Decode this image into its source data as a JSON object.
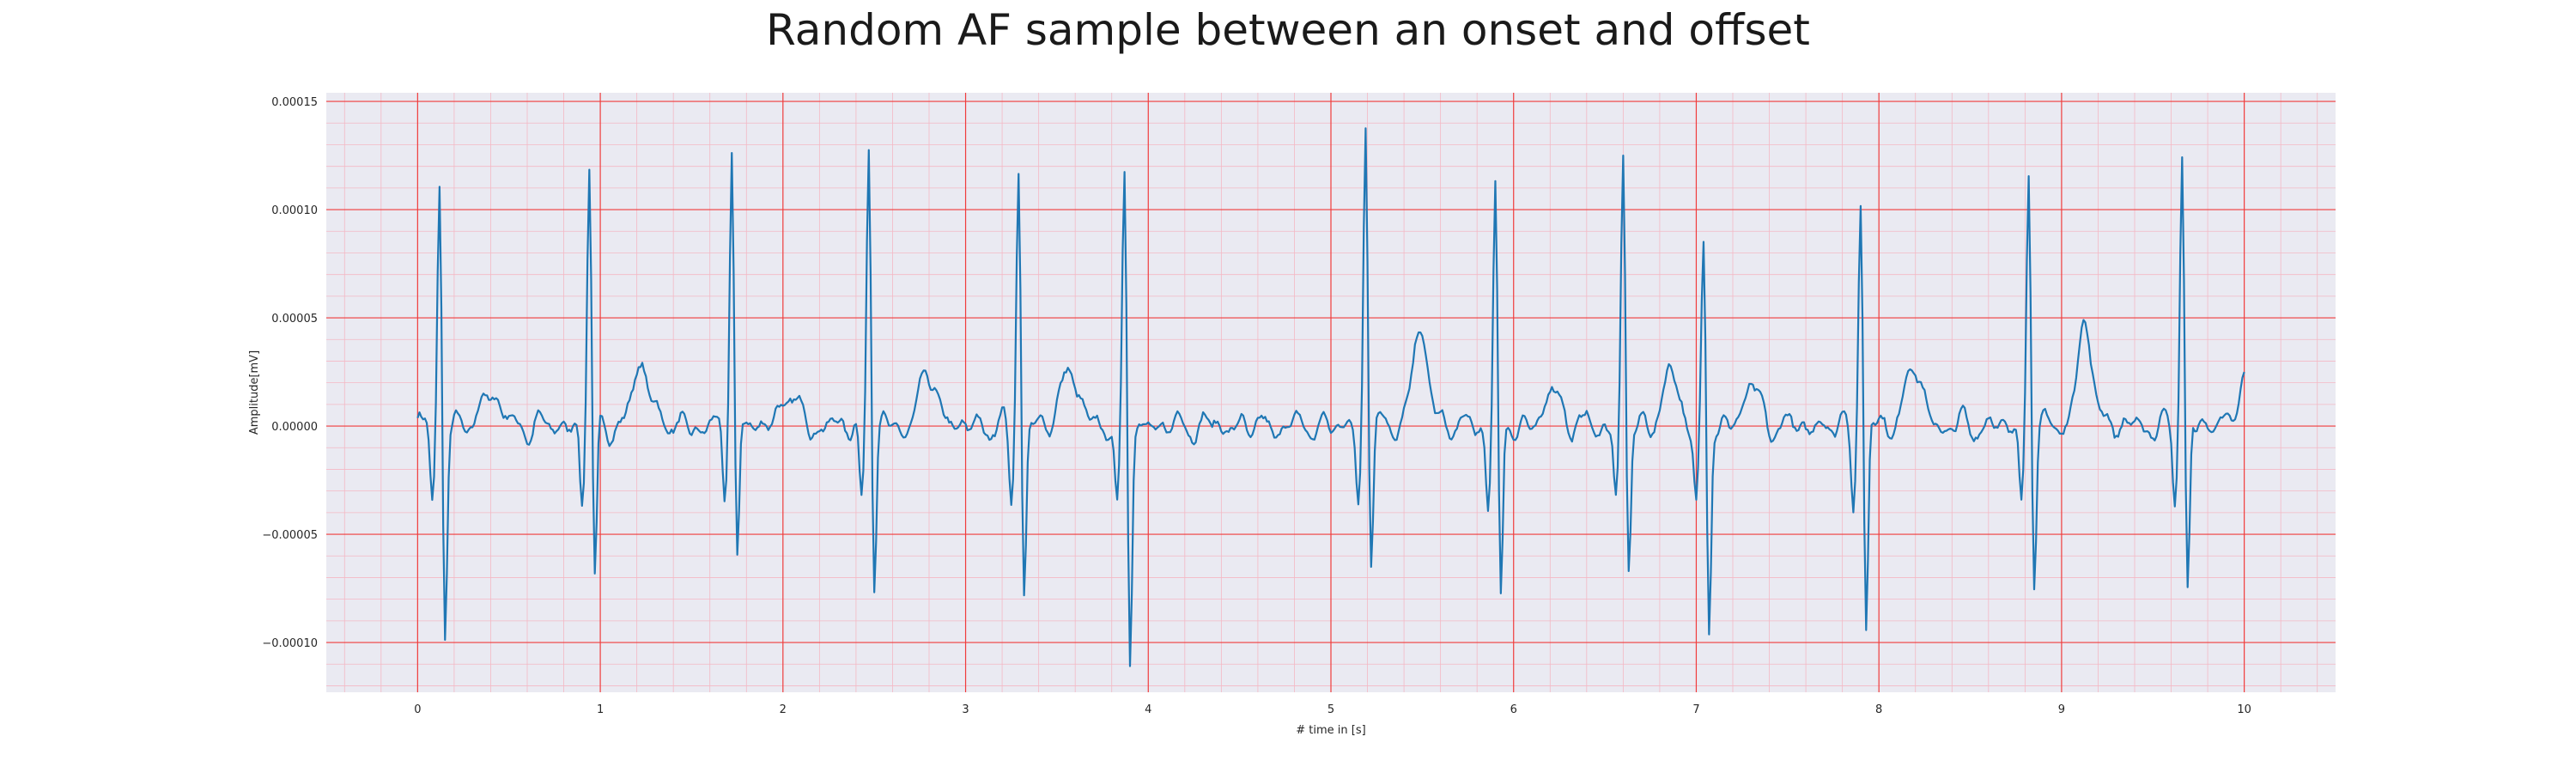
{
  "chart_data": {
    "type": "line",
    "title": "Random AF sample between an onset and offset",
    "xlabel": "# time in [s]",
    "ylabel": "Amplitude[mV]",
    "xlim": [
      -0.5,
      10.5
    ],
    "ylim": [
      -0.000123,
      0.000154
    ],
    "x_ticks": [
      0,
      1,
      2,
      3,
      4,
      5,
      6,
      7,
      8,
      9,
      10
    ],
    "x_tick_labels": [
      "0",
      "1",
      "2",
      "3",
      "4",
      "5",
      "6",
      "7",
      "8",
      "9",
      "10"
    ],
    "y_ticks": [
      -0.0001,
      -5e-05,
      0.0,
      5e-05,
      0.0001,
      0.00015
    ],
    "y_tick_labels": [
      "−0.00010",
      "−0.00005",
      "0.00000",
      "0.00005",
      "0.00010",
      "0.00015"
    ],
    "grid": true,
    "minor_grid": true,
    "x_range": [
      0,
      10
    ],
    "n_points": 1001,
    "sampling_interval_s": 0.01,
    "baseline_mV": 0.0,
    "r_peaks": [
      {
        "t": 0.12,
        "peak": 0.000115,
        "trough": -9.9e-05
      },
      {
        "t": 0.94,
        "peak": 0.000122,
        "trough": -7.5e-05
      },
      {
        "t": 1.72,
        "peak": 0.000135,
        "trough": -6.5e-05
      },
      {
        "t": 2.47,
        "peak": 0.000133,
        "trough": -7.5e-05
      },
      {
        "t": 3.29,
        "peak": 0.000121,
        "trough": -7.8e-05
      },
      {
        "t": 3.87,
        "peak": 0.000114,
        "trough": -0.00011
      },
      {
        "t": 5.19,
        "peak": 0.000142,
        "trough": -6.3e-05
      },
      {
        "t": 5.9,
        "peak": 0.000112,
        "trough": -8.6e-05
      },
      {
        "t": 6.6,
        "peak": 0.000126,
        "trough": -7e-05
      },
      {
        "t": 7.04,
        "peak": 8.4e-05,
        "trough": -0.0001
      },
      {
        "t": 7.9,
        "peak": 0.000109,
        "trough": -9.7e-05
      },
      {
        "t": 8.82,
        "peak": 0.000119,
        "trough": -7.3e-05
      },
      {
        "t": 9.66,
        "peak": 0.000129,
        "trough": -7.9e-05
      }
    ],
    "t_waves": [
      {
        "t": 0.4,
        "amp": 1.7e-05
      },
      {
        "t": 1.23,
        "amp": 2.9e-05
      },
      {
        "t": 2.03,
        "amp": 1.5e-05
      },
      {
        "t": 2.8,
        "amp": 2.5e-05
      },
      {
        "t": 3.57,
        "amp": 2.8e-05
      },
      {
        "t": 5.49,
        "amp": 4.2e-05
      },
      {
        "t": 6.22,
        "amp": 1.6e-05
      },
      {
        "t": 6.86,
        "amp": 2.3e-05
      },
      {
        "t": 7.3,
        "amp": 1.8e-05
      },
      {
        "t": 8.19,
        "amp": 2.8e-05
      },
      {
        "t": 9.13,
        "amp": 4.3e-05
      },
      {
        "t": 10.0,
        "amp": 2e-05
      }
    ],
    "series": [
      {
        "color": "#1f77b4"
      }
    ],
    "colors": {
      "plot_background": "#eaeaf2",
      "major_grid": "#f03c3c",
      "minor_grid": "#f4b8c4",
      "line": "#1f77b4"
    }
  }
}
